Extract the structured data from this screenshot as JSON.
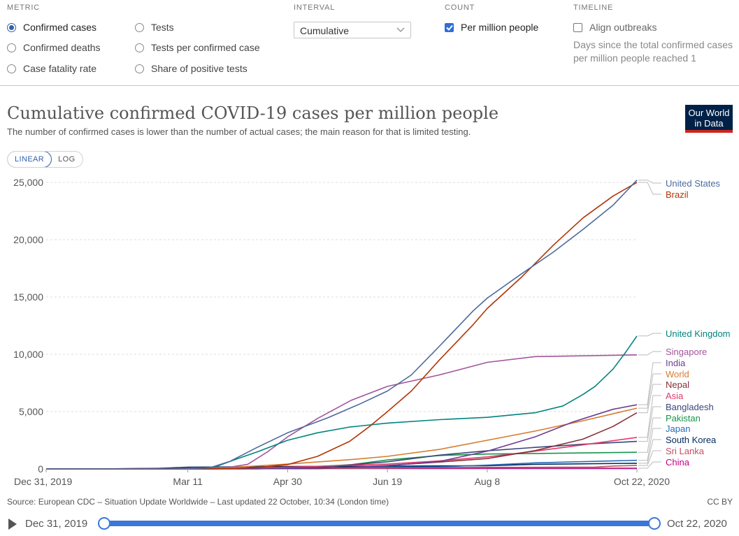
{
  "controls": {
    "metric": {
      "heading": "METRIC",
      "options": [
        {
          "label": "Confirmed cases",
          "selected": true
        },
        {
          "label": "Confirmed deaths",
          "selected": false
        },
        {
          "label": "Case fatality rate",
          "selected": false
        },
        {
          "label": "Tests",
          "selected": false
        },
        {
          "label": "Tests per confirmed case",
          "selected": false
        },
        {
          "label": "Share of positive tests",
          "selected": false
        }
      ]
    },
    "interval": {
      "heading": "INTERVAL",
      "value": "Cumulative"
    },
    "count": {
      "heading": "COUNT",
      "label": "Per million people",
      "checked": true
    },
    "timeline": {
      "heading": "TIMELINE",
      "label": "Align outbreaks",
      "checked": false,
      "note": "Days since the total confirmed cases per million people reached 1"
    }
  },
  "header": {
    "title": "Cumulative confirmed COVID-19 cases per million people",
    "subtitle": "The number of confirmed cases is lower than the number of actual cases; the main reason for that is limited testing.",
    "logo_line1": "Our World",
    "logo_line2": "in Data"
  },
  "scale_toggle": {
    "linear": "LINEAR",
    "log": "LOG",
    "active": "linear"
  },
  "footer": {
    "source": "Source: European CDC – Situation Update Worldwide – Last updated 22 October, 10:34 (London time)",
    "license": "CC BY"
  },
  "timeline_slider": {
    "start": "Dec 31, 2019",
    "end": "Oct 22, 2020"
  },
  "colors": {
    "accent": "#3360a9",
    "logo_bg": "#002147",
    "logo_stripe": "#ce261e"
  },
  "chart_data": {
    "type": "line",
    "title": "Cumulative confirmed COVID-19 cases per million people",
    "x_type": "date",
    "x_range": [
      "2019-12-31",
      "2020-10-22"
    ],
    "x_ticks": [
      {
        "date": "2019-12-31",
        "label": "Dec 31, 2019"
      },
      {
        "date": "2020-03-11",
        "label": "Mar 11"
      },
      {
        "date": "2020-04-30",
        "label": "Apr 30"
      },
      {
        "date": "2020-06-19",
        "label": "Jun 19"
      },
      {
        "date": "2020-08-08",
        "label": "Aug 8"
      },
      {
        "date": "2020-10-22",
        "label": "Oct 22, 2020"
      }
    ],
    "ylim": [
      0,
      25000
    ],
    "y_ticks": [
      {
        "value": 0,
        "label": "0"
      },
      {
        "value": 5000,
        "label": "5,000"
      },
      {
        "value": 10000,
        "label": "10,000"
      },
      {
        "value": 15000,
        "label": "15,000"
      },
      {
        "value": 20000,
        "label": "20,000"
      },
      {
        "value": 25000,
        "label": "25,000"
      }
    ],
    "grid": "horizontal",
    "legend_position": "right, line-end labels",
    "series": [
      {
        "name": "United States",
        "color": "#4c6a9c",
        "points": [
          [
            "2019-12-31",
            0
          ],
          [
            "2020-03-11",
            3
          ],
          [
            "2020-03-22",
            100
          ],
          [
            "2020-04-01",
            650
          ],
          [
            "2020-04-15",
            1900
          ],
          [
            "2020-04-30",
            3150
          ],
          [
            "2020-05-20",
            4450
          ],
          [
            "2020-06-05",
            5650
          ],
          [
            "2020-06-19",
            6800
          ],
          [
            "2020-07-01",
            8200
          ],
          [
            "2020-07-15",
            10700
          ],
          [
            "2020-08-01",
            13800
          ],
          [
            "2020-08-08",
            14900
          ],
          [
            "2020-08-25",
            17000
          ],
          [
            "2020-09-10",
            18900
          ],
          [
            "2020-09-25",
            20900
          ],
          [
            "2020-10-10",
            23000
          ],
          [
            "2020-10-22",
            25200
          ]
        ]
      },
      {
        "name": "Brazil",
        "color": "#b13507",
        "points": [
          [
            "2019-12-31",
            0
          ],
          [
            "2020-03-20",
            0
          ],
          [
            "2020-04-01",
            30
          ],
          [
            "2020-04-15",
            120
          ],
          [
            "2020-04-30",
            380
          ],
          [
            "2020-05-15",
            1100
          ],
          [
            "2020-05-31",
            2400
          ],
          [
            "2020-06-10",
            3700
          ],
          [
            "2020-06-19",
            5000
          ],
          [
            "2020-07-01",
            6800
          ],
          [
            "2020-07-15",
            9500
          ],
          [
            "2020-08-01",
            12600
          ],
          [
            "2020-08-08",
            14000
          ],
          [
            "2020-08-25",
            16700
          ],
          [
            "2020-09-10",
            19500
          ],
          [
            "2020-09-25",
            21900
          ],
          [
            "2020-10-10",
            23800
          ],
          [
            "2020-10-22",
            25000
          ]
        ]
      },
      {
        "name": "United Kingdom",
        "color": "#00847e",
        "points": [
          [
            "2019-12-31",
            0
          ],
          [
            "2020-03-01",
            0
          ],
          [
            "2020-03-15",
            20
          ],
          [
            "2020-03-25",
            200
          ],
          [
            "2020-04-05",
            900
          ],
          [
            "2020-04-15",
            1500
          ],
          [
            "2020-04-30",
            2500
          ],
          [
            "2020-05-15",
            3150
          ],
          [
            "2020-05-31",
            3650
          ],
          [
            "2020-06-19",
            4000
          ],
          [
            "2020-07-15",
            4300
          ],
          [
            "2020-08-08",
            4500
          ],
          [
            "2020-09-01",
            4900
          ],
          [
            "2020-09-15",
            5500
          ],
          [
            "2020-09-25",
            6500
          ],
          [
            "2020-10-01",
            7200
          ],
          [
            "2020-10-10",
            8700
          ],
          [
            "2020-10-16",
            10100
          ],
          [
            "2020-10-22",
            11600
          ]
        ]
      },
      {
        "name": "Singapore",
        "color": "#a2559c",
        "points": [
          [
            "2019-12-31",
            0
          ],
          [
            "2020-01-25",
            0
          ],
          [
            "2020-03-01",
            30
          ],
          [
            "2020-04-01",
            150
          ],
          [
            "2020-04-10",
            400
          ],
          [
            "2020-04-20",
            1500
          ],
          [
            "2020-04-30",
            2800
          ],
          [
            "2020-05-15",
            4400
          ],
          [
            "2020-06-01",
            6000
          ],
          [
            "2020-06-19",
            7200
          ],
          [
            "2020-07-15",
            8200
          ],
          [
            "2020-08-08",
            9300
          ],
          [
            "2020-09-01",
            9800
          ],
          [
            "2020-10-22",
            9950
          ]
        ]
      },
      {
        "name": "India",
        "color": "#6d3e91",
        "points": [
          [
            "2019-12-31",
            0
          ],
          [
            "2020-04-30",
            25
          ],
          [
            "2020-06-01",
            140
          ],
          [
            "2020-06-19",
            280
          ],
          [
            "2020-07-15",
            650
          ],
          [
            "2020-08-08",
            1550
          ],
          [
            "2020-09-01",
            2800
          ],
          [
            "2020-09-20",
            4100
          ],
          [
            "2020-10-10",
            5200
          ],
          [
            "2020-10-22",
            5600
          ]
        ]
      },
      {
        "name": "World",
        "color": "#d67c2f",
        "points": [
          [
            "2019-12-31",
            0
          ],
          [
            "2020-03-11",
            15
          ],
          [
            "2020-04-01",
            120
          ],
          [
            "2020-04-30",
            420
          ],
          [
            "2020-06-01",
            820
          ],
          [
            "2020-06-19",
            1100
          ],
          [
            "2020-07-15",
            1700
          ],
          [
            "2020-08-08",
            2500
          ],
          [
            "2020-09-01",
            3300
          ],
          [
            "2020-09-25",
            4200
          ],
          [
            "2020-10-22",
            5300
          ]
        ]
      },
      {
        "name": "Nepal",
        "color": "#883039",
        "points": [
          [
            "2019-12-31",
            0
          ],
          [
            "2020-05-15",
            20
          ],
          [
            "2020-06-19",
            300
          ],
          [
            "2020-07-15",
            600
          ],
          [
            "2020-08-08",
            900
          ],
          [
            "2020-09-01",
            1600
          ],
          [
            "2020-09-25",
            2600
          ],
          [
            "2020-10-10",
            3700
          ],
          [
            "2020-10-22",
            4900
          ]
        ]
      },
      {
        "name": "Asia",
        "color": "#e2386b",
        "points": [
          [
            "2019-12-31",
            0
          ],
          [
            "2020-03-11",
            30
          ],
          [
            "2020-04-30",
            150
          ],
          [
            "2020-06-19",
            420
          ],
          [
            "2020-07-15",
            700
          ],
          [
            "2020-08-08",
            1050
          ],
          [
            "2020-09-01",
            1550
          ],
          [
            "2020-09-25",
            2100
          ],
          [
            "2020-10-22",
            2750
          ]
        ]
      },
      {
        "name": "Bangladesh",
        "color": "#38477a",
        "points": [
          [
            "2019-12-31",
            0
          ],
          [
            "2020-04-15",
            5
          ],
          [
            "2020-05-15",
            130
          ],
          [
            "2020-06-19",
            620
          ],
          [
            "2020-07-15",
            1200
          ],
          [
            "2020-08-08",
            1580
          ],
          [
            "2020-09-01",
            1880
          ],
          [
            "2020-09-25",
            2150
          ],
          [
            "2020-10-22",
            2400
          ]
        ]
      },
      {
        "name": "Pakistan",
        "color": "#18954b",
        "points": [
          [
            "2019-12-31",
            0
          ],
          [
            "2020-03-20",
            2
          ],
          [
            "2020-04-30",
            70
          ],
          [
            "2020-06-01",
            370
          ],
          [
            "2020-06-19",
            780
          ],
          [
            "2020-07-15",
            1170
          ],
          [
            "2020-08-08",
            1300
          ],
          [
            "2020-09-01",
            1350
          ],
          [
            "2020-10-22",
            1450
          ]
        ]
      },
      {
        "name": "Japan",
        "color": "#286bbb",
        "points": [
          [
            "2019-12-31",
            0
          ],
          [
            "2020-03-11",
            5
          ],
          [
            "2020-04-30",
            110
          ],
          [
            "2020-06-19",
            145
          ],
          [
            "2020-07-15",
            180
          ],
          [
            "2020-08-08",
            330
          ],
          [
            "2020-09-01",
            530
          ],
          [
            "2020-10-22",
            750
          ]
        ]
      },
      {
        "name": "South Korea",
        "color": "#00295b",
        "points": [
          [
            "2019-12-31",
            0
          ],
          [
            "2020-02-20",
            5
          ],
          [
            "2020-03-11",
            150
          ],
          [
            "2020-04-30",
            210
          ],
          [
            "2020-06-19",
            240
          ],
          [
            "2020-08-08",
            280
          ],
          [
            "2020-09-01",
            400
          ],
          [
            "2020-10-22",
            495
          ]
        ]
      },
      {
        "name": "Sri Lanka",
        "color": "#c15065",
        "points": [
          [
            "2019-12-31",
            0
          ],
          [
            "2020-03-20",
            2
          ],
          [
            "2020-04-30",
            30
          ],
          [
            "2020-06-19",
            90
          ],
          [
            "2020-08-08",
            135
          ],
          [
            "2020-10-01",
            160
          ],
          [
            "2020-10-10",
            250
          ],
          [
            "2020-10-22",
            300
          ]
        ]
      },
      {
        "name": "China",
        "color": "#c00088",
        "points": [
          [
            "2019-12-31",
            0
          ],
          [
            "2020-02-01",
            8
          ],
          [
            "2020-02-15",
            40
          ],
          [
            "2020-03-01",
            55
          ],
          [
            "2020-04-30",
            58
          ],
          [
            "2020-10-22",
            63
          ]
        ]
      }
    ]
  }
}
